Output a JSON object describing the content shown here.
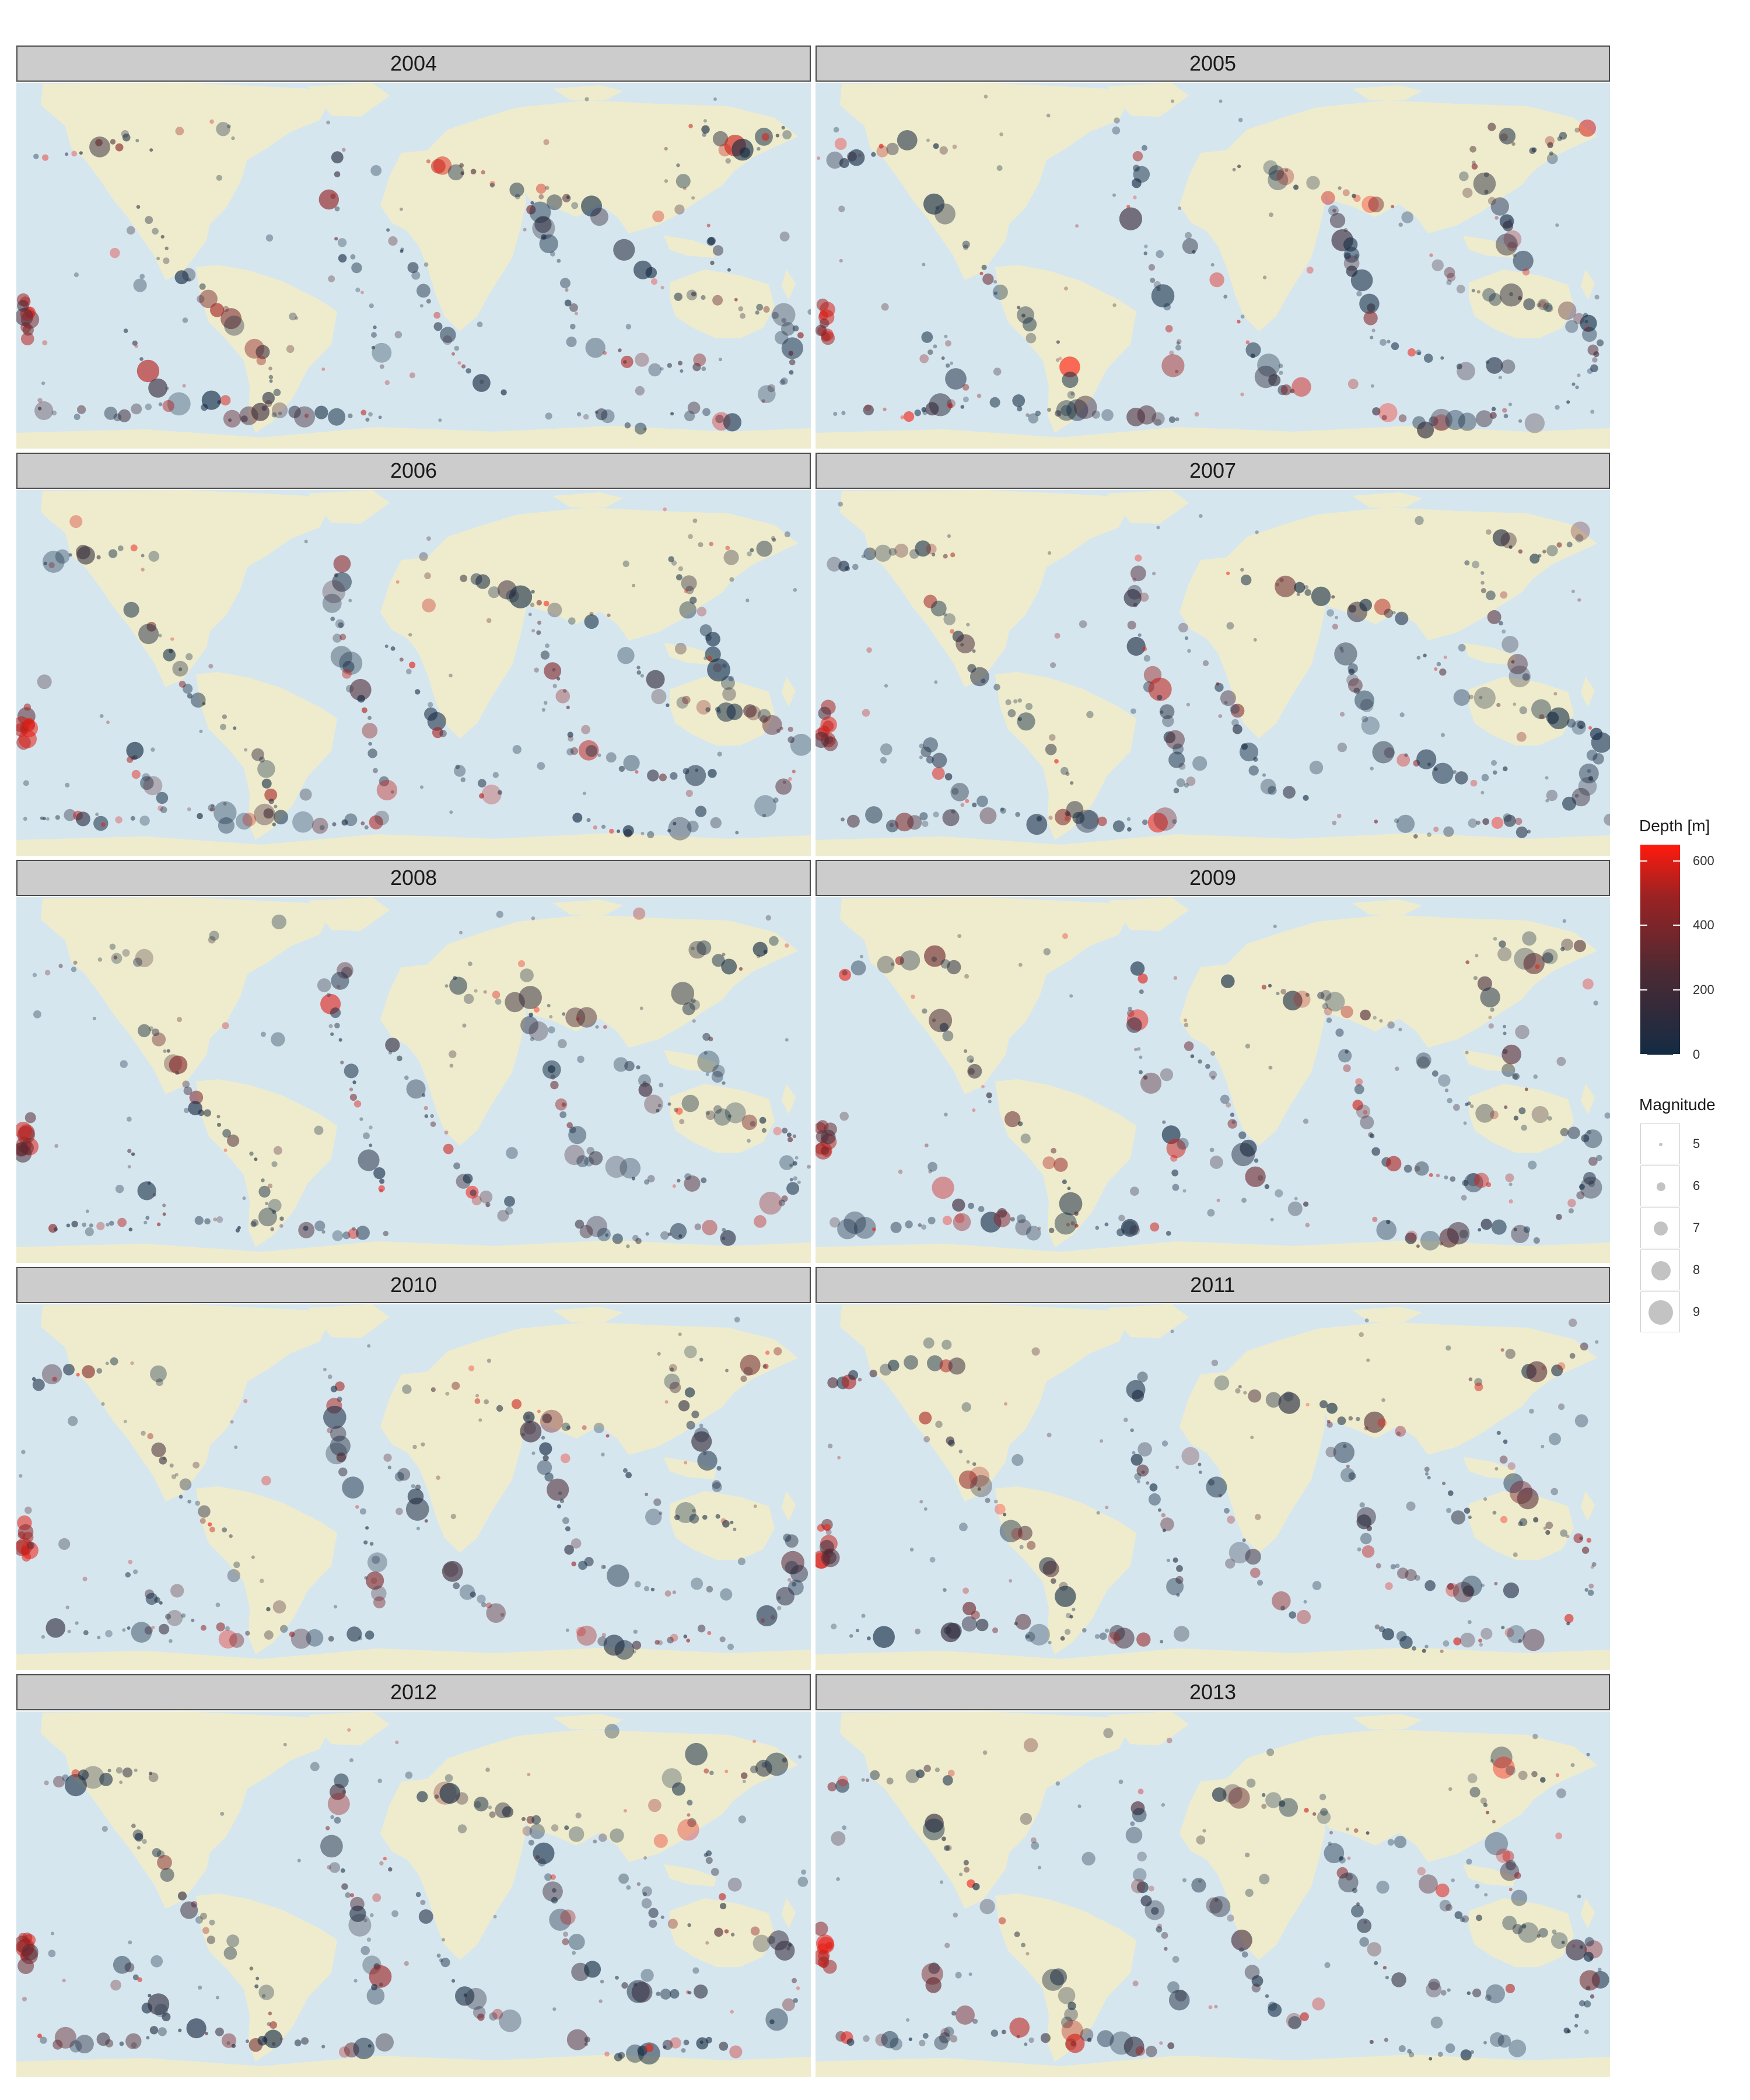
{
  "colors": {
    "ocean": "#d6e6ef",
    "land": "#efeccd",
    "depth_low": "#132b43",
    "depth_high": "#ff1a0d",
    "strip_bg": "#cccccc"
  },
  "panels": [
    {
      "year": "2004"
    },
    {
      "year": "2005"
    },
    {
      "year": "2006"
    },
    {
      "year": "2007"
    },
    {
      "year": "2008"
    },
    {
      "year": "2009"
    },
    {
      "year": "2010"
    },
    {
      "year": "2011"
    },
    {
      "year": "2012"
    },
    {
      "year": "2013"
    }
  ],
  "legend": {
    "depth": {
      "title": "Depth [m]",
      "min": 0,
      "max": 650,
      "ticks": [
        {
          "label": "0",
          "value": 0
        },
        {
          "label": "200",
          "value": 200
        },
        {
          "label": "400",
          "value": 400
        },
        {
          "label": "600",
          "value": 600
        }
      ]
    },
    "magnitude": {
      "title": "Magnitude",
      "keys": [
        {
          "label": "5",
          "value": 5
        },
        {
          "label": "6",
          "value": 6
        },
        {
          "label": "7",
          "value": 7
        },
        {
          "label": "8",
          "value": 8
        },
        {
          "label": "9",
          "value": 9
        }
      ]
    }
  }
}
